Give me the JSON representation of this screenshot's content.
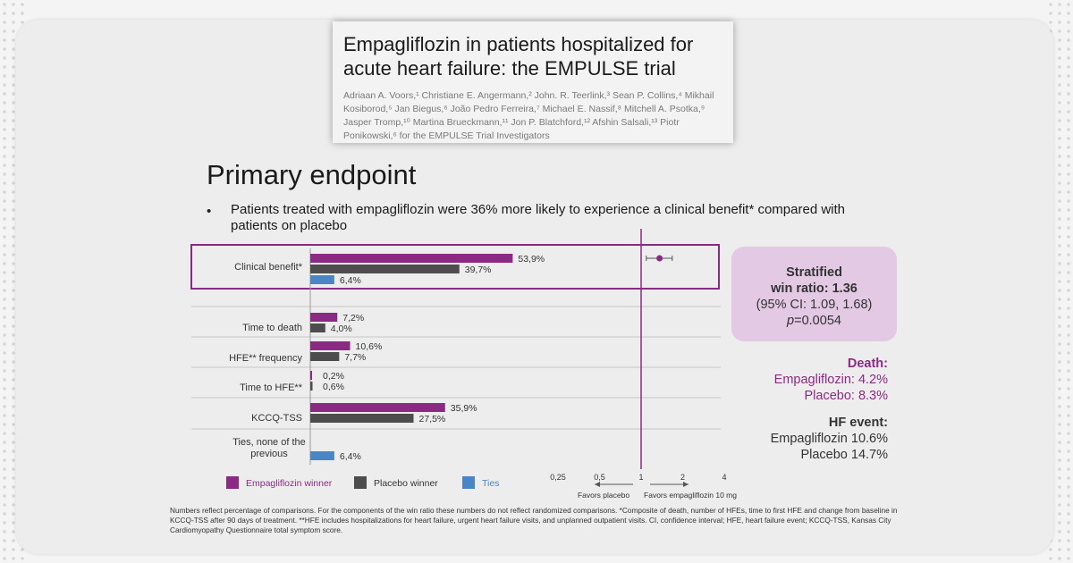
{
  "paper": {
    "title": "Empagliflozin in patients hospitalized for acute heart failure: the EMPULSE trial",
    "authors": "Adriaan A. Voors,¹ Christiane E. Angermann,² John. R. Teerlink,³ Sean P. Collins,⁴ Mikhail Kosiborod,⁵ Jan Biegus,⁶ João Pedro Ferreira,⁷ Michael E. Nassif,⁸ Mitchell A. Psotka,⁹ Jasper Tromp,¹⁰ Martina Brueckmann,¹¹ Jon P. Blatchford,¹² Afshin Salsali,¹³ Piotr Ponikowski,⁶ for the EMPULSE Trial Investigators"
  },
  "heading": "Primary endpoint",
  "bullet_marker": "•",
  "bullet": "Patients treated with empagliflozin were 36% more likely to experience a clinical benefit* compared with patients on placebo",
  "colors": {
    "empagliflozin": "#8b2a82",
    "placebo": "#4d4d4d",
    "ties": "#4a86c5",
    "box": "#e3c9e3"
  },
  "chart_data": [
    {
      "type": "bar",
      "orientation": "horizontal",
      "categories": [
        "Clinical benefit*",
        "Time to death",
        "HFE** frequency",
        "Time to HFE**",
        "KCCQ-TSS",
        "Ties, none of the previous"
      ],
      "series": [
        {
          "name": "Empagliflozin winner",
          "values": [
            53.9,
            7.2,
            10.6,
            0.2,
            35.9,
            null
          ],
          "labels": [
            "53,9%",
            "7,2%",
            "10,6%",
            "0,2%",
            "35,9%",
            ""
          ]
        },
        {
          "name": "Placebo winner",
          "values": [
            39.7,
            4.0,
            7.7,
            0.6,
            27.5,
            null
          ],
          "labels": [
            "39,7%",
            "4,0%",
            "7,7%",
            "0,6%",
            "27,5%",
            ""
          ]
        },
        {
          "name": "Ties",
          "values": [
            6.4,
            null,
            null,
            null,
            null,
            6.4
          ],
          "labels": [
            "6,4%",
            "",
            "",
            "",
            "",
            "6,4%"
          ]
        }
      ]
    },
    {
      "type": "scatter",
      "subtype": "forest",
      "x_scale": "log",
      "x_ticks": [
        "0,25",
        "0,5",
        "1",
        "2",
        "4"
      ],
      "x_tick_values": [
        0.25,
        0.5,
        1,
        2,
        4
      ],
      "reference_x": 1,
      "point": {
        "label": "Clinical benefit*",
        "estimate": 1.36,
        "ci_low": 1.09,
        "ci_high": 1.68
      },
      "arrow_left_label": "Favors placebo",
      "arrow_right_label": "Favors empagliflozin 10 mg"
    }
  ],
  "win_ratio": {
    "line1": "Stratified",
    "line2": "win ratio: 1.36",
    "line3": "(95% CI: 1.09, 1.68)",
    "p_label": "p",
    "p_value": "=0.0054"
  },
  "death": {
    "header": "Death:",
    "empa": "Empagliflozin: 4.2%",
    "placebo": "Placebo: 8.3%"
  },
  "hf_event": {
    "header": "HF event:",
    "empa": "Empagliflozin 10.6%",
    "placebo": "Placebo 14.7%"
  },
  "footnote": "Numbers reflect percentage of comparisons. For the components of the win ratio these numbers do not reflect randomized comparisons. *Composite of death, number of HFEs, time to first HFE and change from baseline in KCCQ-TSS after 90 days of treatment. **HFE includes hospitalizations for heart failure, urgent heart failure visits, and unplanned outpatient visits. CI, confidence interval; HFE, heart failure event; KCCQ-TSS, Kansas City Cardiomyopathy Questionnaire total symptom score."
}
